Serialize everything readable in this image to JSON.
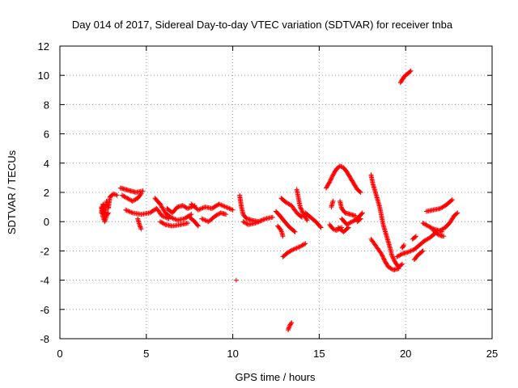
{
  "chart_data": {
    "type": "scatter",
    "title": "Day 014 of 2017, Sidereal Day-to-day VTEC variation (SDTVAR) for receiver tnba",
    "xlabel": "GPS time / hours",
    "ylabel": "SDTVAR / TECUs",
    "xlim": [
      0,
      25
    ],
    "ylim": [
      -8,
      12
    ],
    "xticks": [
      0,
      5,
      10,
      15,
      20,
      25
    ],
    "yticks": [
      -8,
      -6,
      -4,
      -2,
      0,
      2,
      4,
      6,
      8,
      10,
      12
    ],
    "grid": true,
    "marker": "plus",
    "colors": {
      "points": "#ff0000",
      "grid": "#a0a0a0",
      "axis": "#000000"
    },
    "series": [
      {
        "segments": [
          [
            [
              2.4,
              0.6
            ],
            [
              2.5,
              1.2
            ],
            [
              2.6,
              0.4
            ],
            [
              2.7,
              1.4
            ],
            [
              2.8,
              0.9
            ],
            [
              2.9,
              1.7
            ],
            [
              3.1,
              1.9
            ],
            [
              3.3,
              1.8
            ]
          ],
          [
            [
              2.4,
              1.0
            ],
            [
              2.5,
              0.3
            ],
            [
              2.6,
              0.0
            ],
            [
              2.7,
              0.4
            ],
            [
              2.8,
              0.6
            ]
          ],
          [
            [
              3.5,
              2.3
            ],
            [
              3.8,
              2.2
            ],
            [
              4.1,
              2.1
            ],
            [
              4.4,
              2.0
            ],
            [
              4.8,
              2.1
            ]
          ],
          [
            [
              3.6,
              1.8
            ],
            [
              3.9,
              1.6
            ],
            [
              4.2,
              1.4
            ],
            [
              4.5,
              1.6
            ],
            [
              4.7,
              1.9
            ]
          ],
          [
            [
              3.8,
              0.8
            ],
            [
              4.2,
              0.6
            ],
            [
              4.7,
              0.5
            ],
            [
              5.2,
              0.6
            ],
            [
              5.6,
              0.9
            ],
            [
              5.9,
              0.4
            ],
            [
              6.3,
              0.2
            ]
          ],
          [
            [
              4.5,
              0.2
            ],
            [
              4.6,
              -0.2
            ],
            [
              4.7,
              -0.5
            ]
          ],
          [
            [
              5.5,
              1.6
            ],
            [
              5.8,
              1.2
            ],
            [
              6.1,
              0.6
            ],
            [
              6.4,
              0.3
            ],
            [
              6.8,
              0.1
            ],
            [
              7.2,
              0.2
            ],
            [
              7.6,
              0.5
            ]
          ],
          [
            [
              6.2,
              0.9
            ],
            [
              6.5,
              0.6
            ],
            [
              6.8,
              1.0
            ],
            [
              7.1,
              1.1
            ],
            [
              7.4,
              0.9
            ],
            [
              7.8,
              1.1
            ]
          ],
          [
            [
              5.8,
              0.0
            ],
            [
              6.1,
              -0.2
            ],
            [
              6.5,
              -0.3
            ],
            [
              7.0,
              -0.2
            ],
            [
              7.4,
              -0.1
            ]
          ],
          [
            [
              7.6,
              1.2
            ],
            [
              8.0,
              0.8
            ],
            [
              8.4,
              1.0
            ],
            [
              8.8,
              0.9
            ],
            [
              9.2,
              1.2
            ],
            [
              9.6,
              1.0
            ],
            [
              10.0,
              0.8
            ]
          ],
          [
            [
              8.2,
              0.2
            ],
            [
              8.6,
              0.0
            ],
            [
              9.0,
              0.4
            ],
            [
              9.3,
              0.6
            ],
            [
              9.6,
              0.5
            ]
          ],
          [
            [
              7.5,
              0.3
            ],
            [
              7.8,
              0.0
            ],
            [
              8.0,
              -0.3
            ]
          ],
          [
            [
              10.4,
              1.8
            ],
            [
              10.5,
              1.0
            ],
            [
              10.6,
              0.5
            ],
            [
              10.8,
              0.2
            ],
            [
              11.1,
              0.1
            ],
            [
              11.5,
              0.0
            ],
            [
              11.9,
              0.2
            ],
            [
              12.3,
              0.3
            ]
          ],
          [
            [
              10.6,
              0.0
            ],
            [
              10.9,
              -0.2
            ],
            [
              11.3,
              -0.1
            ],
            [
              11.7,
              0.1
            ]
          ],
          [
            [
              12.5,
              0.7
            ],
            [
              12.8,
              0.3
            ],
            [
              13.0,
              0.0
            ],
            [
              13.3,
              -0.4
            ],
            [
              13.6,
              -0.7
            ]
          ],
          [
            [
              12.6,
              -0.3
            ],
            [
              12.8,
              -0.6
            ],
            [
              12.9,
              -1.0
            ]
          ],
          [
            [
              12.8,
              1.6
            ],
            [
              13.1,
              1.3
            ],
            [
              13.4,
              1.1
            ],
            [
              13.7,
              0.6
            ],
            [
              14.0,
              0.3
            ]
          ],
          [
            [
              13.7,
              2.2
            ],
            [
              13.8,
              1.6
            ],
            [
              13.9,
              1.0
            ],
            [
              14.1,
              0.5
            ],
            [
              14.3,
              0.1
            ]
          ],
          [
            [
              14.2,
              0.6
            ],
            [
              14.5,
              0.3
            ],
            [
              14.8,
              0.0
            ],
            [
              15.1,
              -0.4
            ]
          ],
          [
            [
              12.9,
              -2.4
            ],
            [
              13.2,
              -2.1
            ],
            [
              13.5,
              -1.9
            ],
            [
              13.9,
              -1.7
            ],
            [
              14.2,
              -1.5
            ]
          ],
          [
            [
              13.2,
              -7.4
            ],
            [
              13.3,
              -7.1
            ],
            [
              13.4,
              -6.9
            ]
          ],
          [
            [
              10.2,
              -4.0
            ]
          ],
          [
            [
              15.4,
              2.3
            ],
            [
              15.6,
              2.7
            ],
            [
              15.8,
              3.2
            ],
            [
              16.0,
              3.6
            ],
            [
              16.2,
              3.8
            ],
            [
              16.4,
              3.7
            ],
            [
              16.6,
              3.4
            ],
            [
              16.8,
              3.0
            ],
            [
              17.0,
              2.6
            ],
            [
              17.2,
              2.2
            ],
            [
              17.4,
              2.0
            ]
          ],
          [
            [
              15.8,
              1.4
            ],
            [
              15.7,
              1.0
            ]
          ],
          [
            [
              15.6,
              -0.2
            ],
            [
              15.8,
              -0.5
            ],
            [
              16.0,
              -0.6
            ],
            [
              16.3,
              -0.4
            ]
          ],
          [
            [
              16.2,
              1.4
            ],
            [
              16.3,
              0.9
            ],
            [
              16.5,
              0.6
            ],
            [
              16.8,
              0.5
            ],
            [
              17.1,
              0.4
            ]
          ],
          [
            [
              16.3,
              0.2
            ],
            [
              16.6,
              -0.2
            ],
            [
              16.9,
              0.0
            ],
            [
              17.2,
              0.2
            ],
            [
              17.5,
              0.6
            ]
          ],
          [
            [
              16.1,
              -0.4
            ],
            [
              16.4,
              -0.7
            ],
            [
              16.7,
              -0.4
            ]
          ],
          [
            [
              17.2,
              0.0
            ],
            [
              17.4,
              0.2
            ]
          ],
          [
            [
              18.0,
              3.2
            ],
            [
              18.1,
              2.6
            ],
            [
              18.3,
              1.8
            ],
            [
              18.5,
              1.0
            ],
            [
              18.6,
              0.4
            ],
            [
              18.7,
              -0.2
            ],
            [
              18.9,
              -1.0
            ],
            [
              19.1,
              -1.8
            ],
            [
              19.2,
              -2.3
            ],
            [
              19.4,
              -2.8
            ],
            [
              19.6,
              -3.1
            ],
            [
              19.8,
              -2.9
            ]
          ],
          [
            [
              18.0,
              -1.2
            ],
            [
              18.3,
              -1.7
            ],
            [
              18.6,
              -2.2
            ],
            [
              18.8,
              -2.7
            ],
            [
              19.0,
              -3.1
            ],
            [
              19.3,
              -3.3
            ],
            [
              19.6,
              -3.2
            ]
          ],
          [
            [
              19.5,
              -2.4
            ],
            [
              19.8,
              -2.2
            ],
            [
              20.1,
              -2.1
            ],
            [
              20.5,
              -1.9
            ],
            [
              20.8,
              -1.6
            ],
            [
              21.1,
              -1.3
            ],
            [
              21.4,
              -1.1
            ],
            [
              21.7,
              -0.8
            ]
          ],
          [
            [
              19.9,
              -1.6
            ],
            [
              19.8,
              -1.8
            ]
          ],
          [
            [
              20.5,
              -2.6
            ],
            [
              20.7,
              -2.3
            ],
            [
              21.0,
              -2.0
            ]
          ],
          [
            [
              20.4,
              -1.2
            ],
            [
              20.6,
              -1.0
            ]
          ],
          [
            [
              21.0,
              -0.1
            ],
            [
              21.3,
              -0.3
            ],
            [
              21.6,
              -0.5
            ],
            [
              21.9,
              -0.6
            ],
            [
              22.1,
              -0.7
            ]
          ],
          [
            [
              21.6,
              -0.6
            ],
            [
              21.9,
              -0.9
            ],
            [
              22.2,
              -1.0
            ]
          ],
          [
            [
              22.0,
              -0.6
            ],
            [
              22.3,
              -0.4
            ],
            [
              22.6,
              0.0
            ],
            [
              22.8,
              0.4
            ],
            [
              23.0,
              0.6
            ]
          ],
          [
            [
              21.2,
              0.7
            ],
            [
              21.6,
              0.8
            ],
            [
              22.0,
              0.9
            ],
            [
              22.3,
              1.1
            ],
            [
              22.5,
              1.3
            ],
            [
              22.7,
              1.5
            ]
          ],
          [
            [
              19.7,
              9.5
            ],
            [
              19.8,
              9.7
            ],
            [
              19.9,
              9.9
            ],
            [
              20.0,
              10.0
            ],
            [
              20.1,
              10.1
            ],
            [
              20.2,
              10.2
            ],
            [
              20.3,
              10.3
            ]
          ]
        ]
      }
    ]
  }
}
